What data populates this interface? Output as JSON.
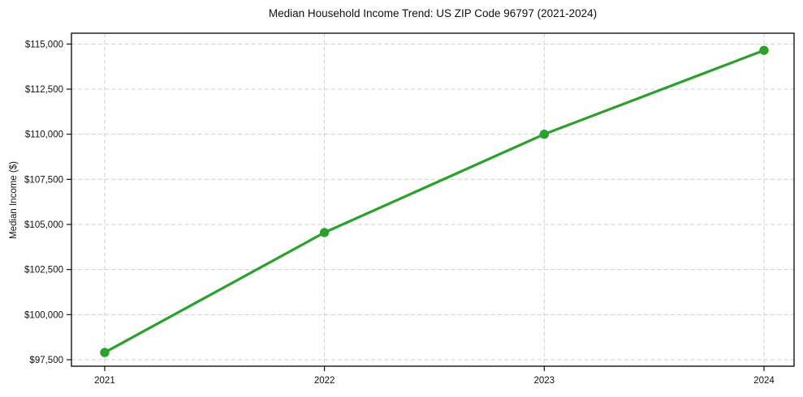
{
  "chart_data": {
    "type": "line",
    "title": "Median Household Income Trend: US ZIP Code 96797 (2021-2024)",
    "xlabel": "",
    "ylabel": "Median Income ($)",
    "x": [
      2021,
      2022,
      2023,
      2024
    ],
    "x_tick_labels": [
      "2021",
      "2022",
      "2023",
      "2024"
    ],
    "values": [
      97900,
      104550,
      110000,
      114650
    ],
    "y_ticks": [
      97500,
      100000,
      102500,
      105000,
      107500,
      110000,
      112500,
      115000
    ],
    "y_tick_labels": [
      "$97,500",
      "$100,000",
      "$102,500",
      "$105,000",
      "$107,500",
      "$110,000",
      "$112,500",
      "$115,000"
    ],
    "ylim": [
      97140,
      115600
    ],
    "grid": true,
    "legend": "none",
    "line_color": "#2ca02c",
    "marker": "circle",
    "grid_color": "#cfcfcf",
    "background_color": "#ffffff"
  }
}
